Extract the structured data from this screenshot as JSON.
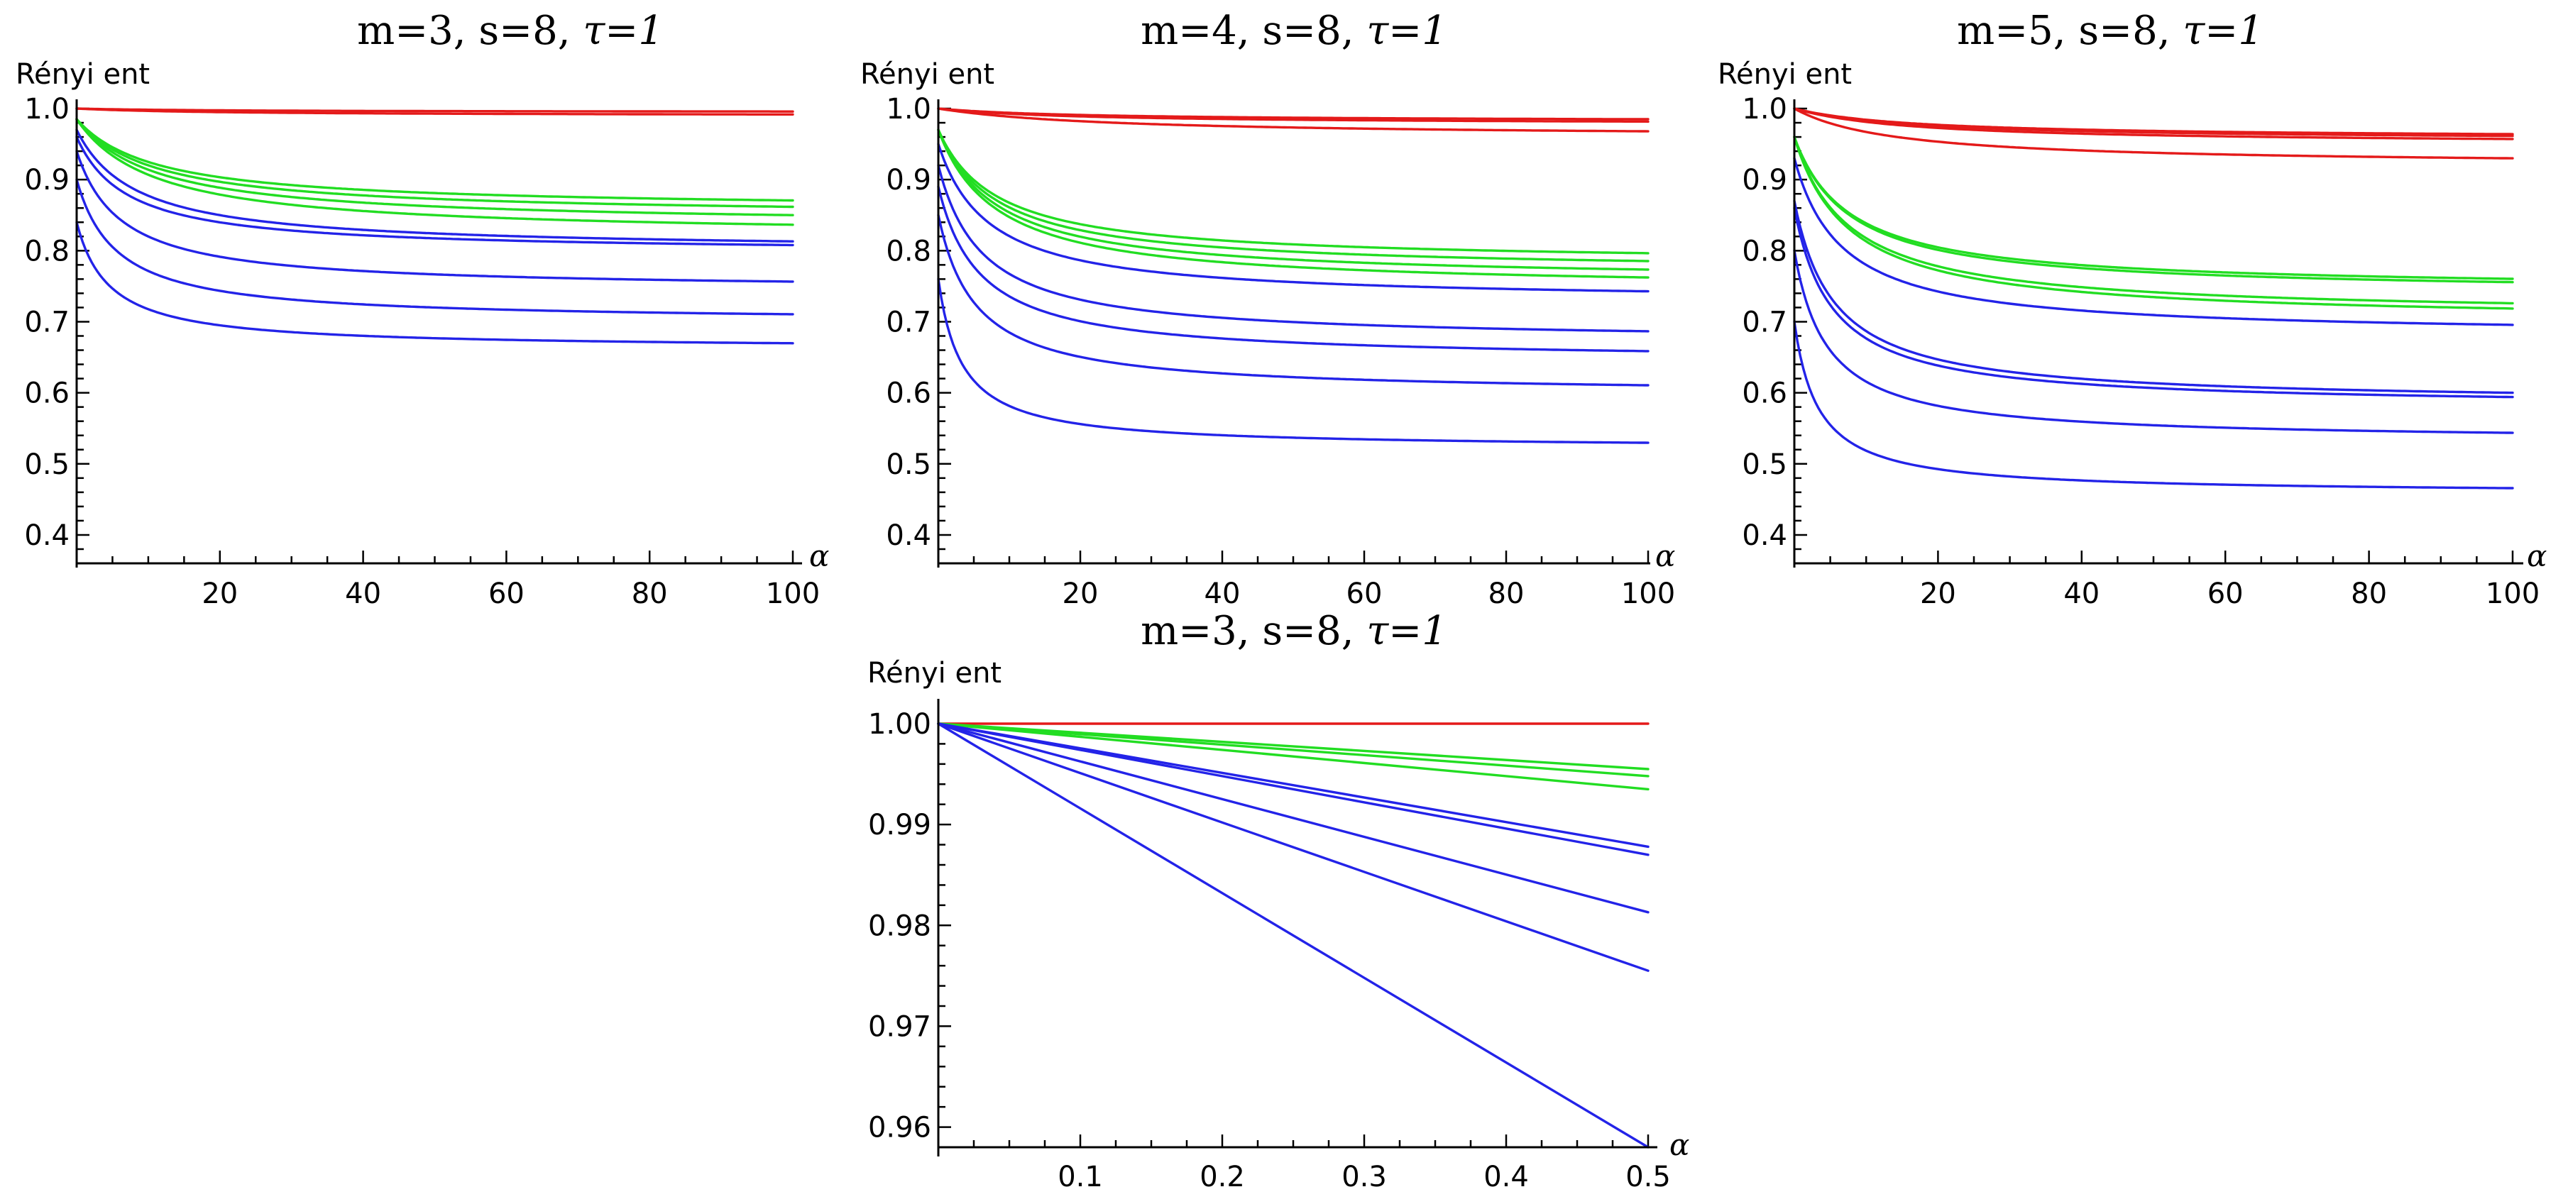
{
  "colors": {
    "red": "#e41a1a",
    "green": "#22dd22",
    "blue": "#2323e8",
    "axis": "#000000"
  },
  "chart_data": [
    {
      "type": "line",
      "title_main": "m=3, s=8, ",
      "title_tau": "τ=1",
      "ylabel": "Rényi ent",
      "xlabel": "α",
      "xlim": [
        0,
        100
      ],
      "ylim": [
        0.36,
        1.0
      ],
      "xticks": [
        20,
        40,
        60,
        80,
        100
      ],
      "xtick_labels": [
        "20",
        "40",
        "60",
        "80",
        "100"
      ],
      "yticks": [
        0.4,
        0.5,
        0.6,
        0.7,
        0.8,
        0.9,
        1.0
      ],
      "ytick_labels": [
        "0.4",
        "0.5",
        "0.6",
        "0.7",
        "0.8",
        "0.9",
        "1.0"
      ],
      "series": [
        {
          "name": "red-1",
          "color": "red",
          "start": 1.0,
          "plateau": 0.995,
          "rate": 0.05
        },
        {
          "name": "red-2",
          "color": "red",
          "start": 1.0,
          "plateau": 0.99,
          "rate": 0.05
        },
        {
          "name": "green-1",
          "color": "green",
          "start": 0.985,
          "plateau": 0.858,
          "rate": 0.09
        },
        {
          "name": "green-2",
          "color": "green",
          "start": 0.985,
          "plateau": 0.848,
          "rate": 0.09
        },
        {
          "name": "green-3",
          "color": "green",
          "start": 0.985,
          "plateau": 0.835,
          "rate": 0.09
        },
        {
          "name": "green-4",
          "color": "green",
          "start": 0.985,
          "plateau": 0.82,
          "rate": 0.09
        },
        {
          "name": "blue-1",
          "color": "blue",
          "start": 0.97,
          "plateau": 0.8,
          "rate": 0.12
        },
        {
          "name": "blue-2",
          "color": "blue",
          "start": 0.96,
          "plateau": 0.797,
          "rate": 0.14
        },
        {
          "name": "blue-3",
          "color": "blue",
          "start": 0.94,
          "plateau": 0.745,
          "rate": 0.16
        },
        {
          "name": "blue-4",
          "color": "blue",
          "start": 0.9,
          "plateau": 0.7,
          "rate": 0.18
        },
        {
          "name": "blue-5",
          "color": "blue",
          "start": 0.84,
          "plateau": 0.662,
          "rate": 0.22
        }
      ]
    },
    {
      "type": "line",
      "title_main": "m=4, s=8, ",
      "title_tau": "τ=1",
      "ylabel": "Rényi ent",
      "xlabel": "α",
      "xlim": [
        0,
        100
      ],
      "ylim": [
        0.36,
        1.0
      ],
      "xticks": [
        20,
        40,
        60,
        80,
        100
      ],
      "xtick_labels": [
        "20",
        "40",
        "60",
        "80",
        "100"
      ],
      "yticks": [
        0.4,
        0.5,
        0.6,
        0.7,
        0.8,
        0.9,
        1.0
      ],
      "ytick_labels": [
        "0.4",
        "0.5",
        "0.6",
        "0.7",
        "0.8",
        "0.9",
        "1.0"
      ],
      "series": [
        {
          "name": "red-1",
          "color": "red",
          "start": 1.0,
          "plateau": 0.982,
          "rate": 0.05
        },
        {
          "name": "red-2",
          "color": "red",
          "start": 1.0,
          "plateau": 0.978,
          "rate": 0.05
        },
        {
          "name": "red-3",
          "color": "red",
          "start": 1.0,
          "plateau": 0.96,
          "rate": 0.04
        },
        {
          "name": "green-1",
          "color": "green",
          "start": 0.97,
          "plateau": 0.782,
          "rate": 0.12
        },
        {
          "name": "green-2",
          "color": "green",
          "start": 0.97,
          "plateau": 0.77,
          "rate": 0.12
        },
        {
          "name": "green-3",
          "color": "green",
          "start": 0.97,
          "plateau": 0.757,
          "rate": 0.12
        },
        {
          "name": "green-4",
          "color": "green",
          "start": 0.97,
          "plateau": 0.745,
          "rate": 0.12
        },
        {
          "name": "blue-1",
          "color": "blue",
          "start": 0.95,
          "plateau": 0.728,
          "rate": 0.14
        },
        {
          "name": "blue-2",
          "color": "blue",
          "start": 0.92,
          "plateau": 0.672,
          "rate": 0.16
        },
        {
          "name": "blue-3",
          "color": "blue",
          "start": 0.89,
          "plateau": 0.645,
          "rate": 0.17
        },
        {
          "name": "blue-4",
          "color": "blue",
          "start": 0.85,
          "plateau": 0.598,
          "rate": 0.19
        },
        {
          "name": "blue-5",
          "color": "blue",
          "start": 0.76,
          "plateau": 0.522,
          "rate": 0.3
        }
      ]
    },
    {
      "type": "line",
      "title_main": "m=5, s=8, ",
      "title_tau": "τ=1",
      "ylabel": "Rényi ent",
      "xlabel": "α",
      "xlim": [
        0,
        100
      ],
      "ylim": [
        0.36,
        1.0
      ],
      "xticks": [
        20,
        40,
        60,
        80,
        100
      ],
      "xtick_labels": [
        "20",
        "40",
        "60",
        "80",
        "100"
      ],
      "yticks": [
        0.4,
        0.5,
        0.6,
        0.7,
        0.8,
        0.9,
        1.0
      ],
      "ytick_labels": [
        "0.4",
        "0.5",
        "0.6",
        "0.7",
        "0.8",
        "0.9",
        "1.0"
      ],
      "series": [
        {
          "name": "red-1",
          "color": "red",
          "start": 1.0,
          "plateau": 0.958,
          "rate": 0.06
        },
        {
          "name": "red-2",
          "color": "red",
          "start": 1.0,
          "plateau": 0.955,
          "rate": 0.06
        },
        {
          "name": "red-3",
          "color": "red",
          "start": 1.0,
          "plateau": 0.95,
          "rate": 0.06
        },
        {
          "name": "red-4",
          "color": "red",
          "start": 1.0,
          "plateau": 0.92,
          "rate": 0.07
        },
        {
          "name": "green-1",
          "color": "green",
          "start": 0.96,
          "plateau": 0.745,
          "rate": 0.13
        },
        {
          "name": "green-2",
          "color": "green",
          "start": 0.96,
          "plateau": 0.74,
          "rate": 0.13
        },
        {
          "name": "green-3",
          "color": "green",
          "start": 0.96,
          "plateau": 0.708,
          "rate": 0.13
        },
        {
          "name": "green-4",
          "color": "green",
          "start": 0.96,
          "plateau": 0.7,
          "rate": 0.13
        },
        {
          "name": "blue-1",
          "color": "blue",
          "start": 0.93,
          "plateau": 0.68,
          "rate": 0.15
        },
        {
          "name": "blue-2",
          "color": "blue",
          "start": 0.87,
          "plateau": 0.585,
          "rate": 0.18
        },
        {
          "name": "blue-3",
          "color": "blue",
          "start": 0.86,
          "plateau": 0.58,
          "rate": 0.19
        },
        {
          "name": "blue-4",
          "color": "blue",
          "start": 0.8,
          "plateau": 0.532,
          "rate": 0.22
        },
        {
          "name": "blue-5",
          "color": "blue",
          "start": 0.7,
          "plateau": 0.458,
          "rate": 0.3
        }
      ]
    },
    {
      "type": "line",
      "title_main": "m=3, s=8, ",
      "title_tau": "τ=1",
      "ylabel": "Rényi ent",
      "xlabel": "α",
      "xlim": [
        0,
        0.5
      ],
      "ylim": [
        0.958,
        1.0
      ],
      "xticks": [
        0.1,
        0.2,
        0.3,
        0.4,
        0.5
      ],
      "xtick_labels": [
        "0.1",
        "0.2",
        "0.3",
        "0.4",
        "0.5"
      ],
      "yticks": [
        0.96,
        0.97,
        0.98,
        0.99,
        1.0
      ],
      "ytick_labels": [
        "0.96",
        "0.97",
        "0.98",
        "0.99",
        "1.00"
      ],
      "series": [
        {
          "name": "red-1",
          "color": "red",
          "linear_end": 1.0
        },
        {
          "name": "green-1",
          "color": "green",
          "linear_end": 0.9955
        },
        {
          "name": "green-2",
          "color": "green",
          "linear_end": 0.9948
        },
        {
          "name": "green-3",
          "color": "green",
          "linear_end": 0.9935
        },
        {
          "name": "blue-1",
          "color": "blue",
          "linear_end": 0.9878
        },
        {
          "name": "blue-2",
          "color": "blue",
          "linear_end": 0.987
        },
        {
          "name": "blue-3",
          "color": "blue",
          "linear_end": 0.9813
        },
        {
          "name": "blue-4",
          "color": "blue",
          "linear_end": 0.9755
        },
        {
          "name": "blue-5",
          "color": "blue",
          "linear_end": 0.958
        }
      ]
    }
  ]
}
